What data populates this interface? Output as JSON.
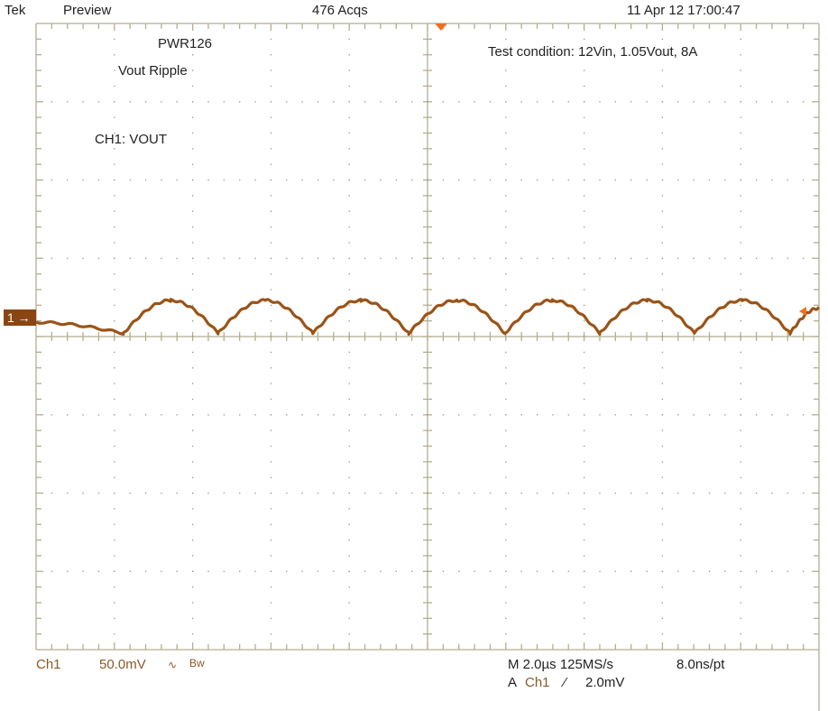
{
  "header": {
    "brand": "Tek",
    "mode": "Preview",
    "acquisitions": "476 Acqs",
    "datetime": "11 Apr 12 17:00:47"
  },
  "annotations": {
    "board": "PWR126",
    "measurement": "Vout Ripple",
    "channel_label": "CH1: VOUT",
    "test_condition": "Test condition: 12Vin, 1.05Vout, 8A"
  },
  "footer": {
    "channel": "Ch1",
    "scale": "50.0mV",
    "coupling_icon": "ac-coupling-icon",
    "coupling_symbol": "∿",
    "bw_limit": "Bw",
    "timebase": "M 2.0µs 125MS/s",
    "resolution": "8.0ns/pt",
    "trigger_prefix": "A",
    "trigger_source": "Ch1",
    "trigger_slope_symbol": "⁄",
    "trigger_level": "2.0mV"
  },
  "channel_marker": "1",
  "colors": {
    "trace": "#9a5418",
    "marker": "#8b4513",
    "grid": "#b5ad92",
    "trigger": "#f07020",
    "channel_text": "#8b5a24"
  },
  "chart_data": {
    "type": "line",
    "title": "",
    "xlabel": "",
    "ylabel": "",
    "x_unit": "µs",
    "y_unit": "mV",
    "xlim": [
      -10,
      10
    ],
    "ylim": [
      -200,
      200
    ],
    "x_per_div": 2.0,
    "y_per_div": 50.0,
    "grid": true,
    "channel_offset_mV": 35,
    "series": [
      {
        "name": "Ch1",
        "x": [
          -10.0,
          -7.77,
          -6.56,
          -5.35,
          -4.14,
          -2.93,
          -1.7,
          -0.48,
          0.75,
          1.98,
          3.19,
          4.4,
          5.61,
          6.82,
          8.04,
          9.26,
          10.0
        ],
        "y": [
          -3,
          -10,
          11,
          -10,
          11,
          -10,
          11,
          -10,
          11,
          -10,
          11,
          -10,
          11,
          -10,
          11,
          -10,
          6
        ]
      }
    ]
  }
}
